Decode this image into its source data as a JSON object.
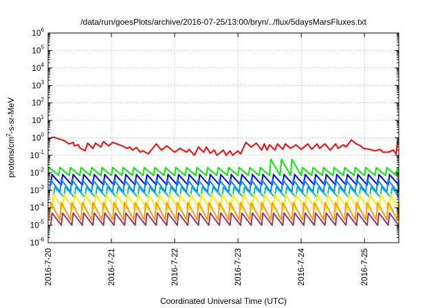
{
  "chart_data": {
    "type": "line",
    "title": "/data/run/goesPlots/archive/2016-07-25/13:00/bryn/../flux/5daysMarsFluxes.txt",
    "xlabel": "Coordinated Universal Time (UTC)",
    "ylabel": "protons/cm2-s-sr-MeV",
    "ylabel_parts": {
      "before": "protons/cm",
      "sup": "2",
      "after": "-s-sr-MeV"
    },
    "y_scale": "log",
    "ylim": [
      1e-06,
      1000000.0
    ],
    "y_ticks": [
      {
        "base": "10",
        "exp": "-6",
        "value": 1e-06
      },
      {
        "base": "10",
        "exp": "-5",
        "value": 1e-05
      },
      {
        "base": "10",
        "exp": "-4",
        "value": 0.0001
      },
      {
        "base": "10",
        "exp": "-3",
        "value": 0.001
      },
      {
        "base": "10",
        "exp": "-2",
        "value": 0.01
      },
      {
        "base": "10",
        "exp": "-1",
        "value": 0.1
      },
      {
        "base": "10",
        "exp": "0",
        "value": 1
      },
      {
        "base": "10",
        "exp": "1",
        "value": 10
      },
      {
        "base": "10",
        "exp": "2",
        "value": 100
      },
      {
        "base": "10",
        "exp": "3",
        "value": 1000
      },
      {
        "base": "10",
        "exp": "4",
        "value": 10000
      },
      {
        "base": "10",
        "exp": "5",
        "value": 100000
      },
      {
        "base": "10",
        "exp": "6",
        "value": 1000000
      }
    ],
    "xlim": [
      "2016-07-20T00:00",
      "2016-07-25T13:00"
    ],
    "x_ticks": [
      {
        "label": "2016-7-20",
        "date": "2016-07-20T00:00"
      },
      {
        "label": "2016-7-21",
        "date": "2016-07-21T00:00"
      },
      {
        "label": "2016-7-22",
        "date": "2016-07-22T00:00"
      },
      {
        "label": "2016-7-23",
        "date": "2016-07-23T00:00"
      },
      {
        "label": "2016-7-24",
        "date": "2016-07-24T00:00"
      },
      {
        "label": "2016-7-25",
        "date": "2016-07-25T00:00"
      }
    ],
    "grid": true,
    "legend": "none",
    "series": [
      {
        "color": "#ff0000",
        "x": [
          "2016-07-20T00:00",
          "2016-07-20T02:00",
          "2016-07-20T06:00",
          "2016-07-20T08:00",
          "2016-07-20T09:30",
          "2016-07-20T10:00",
          "2016-07-20T11:30",
          "2016-07-20T12:00",
          "2016-07-20T14:00",
          "2016-07-20T15:00",
          "2016-07-20T17:00",
          "2016-07-20T18:00",
          "2016-07-20T20:00",
          "2016-07-20T21:00",
          "2016-07-20T23:00",
          "2016-07-21T00:30",
          "2016-07-21T04:00",
          "2016-07-21T06:00",
          "2016-07-21T07:00",
          "2016-07-21T08:00",
          "2016-07-21T09:30",
          "2016-07-21T11:00",
          "2016-07-21T12:00",
          "2016-07-21T14:00",
          "2016-07-21T17:00",
          "2016-07-21T19:00",
          "2016-07-21T21:00",
          "2016-07-22T00:00",
          "2016-07-22T02:00",
          "2016-07-22T04:30",
          "2016-07-22T05:30",
          "2016-07-22T07:30",
          "2016-07-22T09:00",
          "2016-07-22T11:00",
          "2016-07-22T12:00",
          "2016-07-22T13:30",
          "2016-07-22T15:00",
          "2016-07-22T16:00",
          "2016-07-22T18:30",
          "2016-07-22T19:30",
          "2016-07-22T21:00",
          "2016-07-22T22:00",
          "2016-07-23T00:00",
          "2016-07-23T01:00",
          "2016-07-23T03:00",
          "2016-07-23T05:00",
          "2016-07-23T07:00",
          "2016-07-23T09:00",
          "2016-07-23T10:00",
          "2016-07-23T11:00",
          "2016-07-23T12:00",
          "2016-07-23T14:00",
          "2016-07-23T15:00",
          "2016-07-23T17:00",
          "2016-07-23T18:00",
          "2016-07-23T20:00",
          "2016-07-23T22:00",
          "2016-07-24T00:00",
          "2016-07-24T02:30",
          "2016-07-24T04:00",
          "2016-07-24T06:00",
          "2016-07-24T07:00",
          "2016-07-24T09:00",
          "2016-07-24T11:00",
          "2016-07-24T13:00",
          "2016-07-24T14:00",
          "2016-07-24T16:00",
          "2016-07-24T17:00",
          "2016-07-24T19:00",
          "2016-07-24T21:00",
          "2016-07-24T22:30",
          "2016-07-24T23:30",
          "2016-07-25T02:00",
          "2016-07-25T04:00",
          "2016-07-25T06:00",
          "2016-07-25T07:00",
          "2016-07-25T09:00",
          "2016-07-25T11:00",
          "2016-07-25T12:00",
          "2016-07-25T12:30",
          "2016-07-25T13:00"
        ],
        "y": [
          0.8,
          1.1,
          0.7,
          0.45,
          0.55,
          0.35,
          0.4,
          0.27,
          0.18,
          0.5,
          0.25,
          0.5,
          0.3,
          0.6,
          0.35,
          0.55,
          0.35,
          0.25,
          0.3,
          0.2,
          0.28,
          0.15,
          0.18,
          0.12,
          0.45,
          0.2,
          0.35,
          0.15,
          0.25,
          0.15,
          0.22,
          0.1,
          0.3,
          0.15,
          0.3,
          0.13,
          0.2,
          0.1,
          0.2,
          0.1,
          0.18,
          0.1,
          0.18,
          0.12,
          0.55,
          0.3,
          0.5,
          0.2,
          0.45,
          0.2,
          0.4,
          0.2,
          0.45,
          0.22,
          0.45,
          0.25,
          0.4,
          0.22,
          0.45,
          0.22,
          0.45,
          0.25,
          0.45,
          0.2,
          0.45,
          0.25,
          0.4,
          0.3,
          0.75,
          0.45,
          0.35,
          0.25,
          0.22,
          0.18,
          0.22,
          0.15,
          0.15,
          0.2,
          0.12,
          0.6,
          0.45
        ]
      },
      {
        "color": "#00ee00",
        "min": 0.007,
        "max": 0.02,
        "start": "2016-07-20T00:00",
        "period_hours": 4,
        "jump": {
          "start": "2016-07-23T11:00",
          "end": "2016-07-23T21:00",
          "max": 0.06
        }
      },
      {
        "color": "#0000ff",
        "min": 0.002,
        "max": 0.008,
        "start": "2016-07-20T01:00",
        "period_hours": 4
      },
      {
        "color": "#0088ff",
        "min": 0.0008,
        "max": 0.004,
        "start": "2016-07-20T00:30",
        "period_hours": 4
      },
      {
        "color": "#00bbbb",
        "min": 0.0004,
        "max": 0.0015,
        "start": "2016-07-20T02:00",
        "period_hours": 4
      },
      {
        "color": "#ffee00",
        "min": 8e-05,
        "max": 0.0006,
        "start": "2016-07-20T01:30",
        "period_hours": 4
      },
      {
        "color": "#ff9900",
        "min": 2e-05,
        "max": 0.0002,
        "start": "2016-07-20T00:30",
        "period_hours": 4
      },
      {
        "color": "#993366",
        "min": 1e-05,
        "max": 5e-05,
        "start": "2016-07-20T01:00",
        "period_hours": 4
      }
    ]
  }
}
